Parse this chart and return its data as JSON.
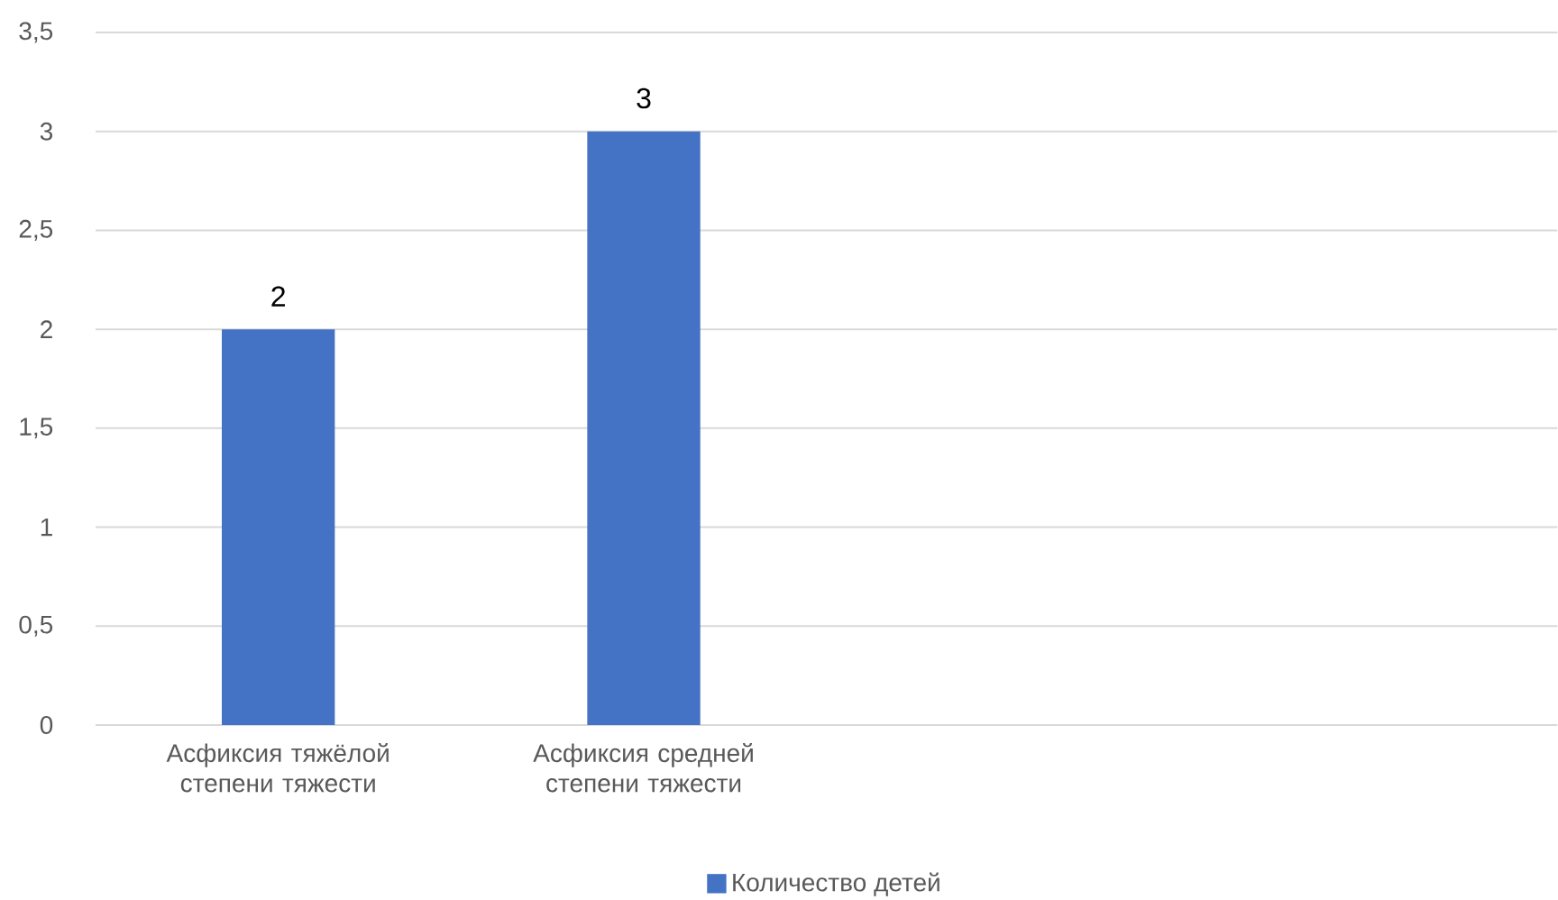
{
  "chart_data": {
    "type": "bar",
    "categories": [
      "Асфиксия тяжёлой степени тяжести",
      "Асфиксия средней степени тяжести",
      null,
      null
    ],
    "series": [
      {
        "name": "Количество детей",
        "color": "#4472c4",
        "values": [
          2,
          3,
          null,
          null
        ]
      }
    ],
    "ylim": [
      0,
      3.5
    ],
    "yticks": [
      0,
      {
        "value": 0.5,
        "label": "0,5"
      },
      1,
      {
        "value": 1.5,
        "label": "1,5"
      },
      2,
      {
        "value": 2.5,
        "label": "2,5"
      },
      3,
      {
        "value": 3.5,
        "label": "3,5"
      }
    ],
    "grid": "y",
    "legend": "bottom",
    "data_labels": true
  }
}
